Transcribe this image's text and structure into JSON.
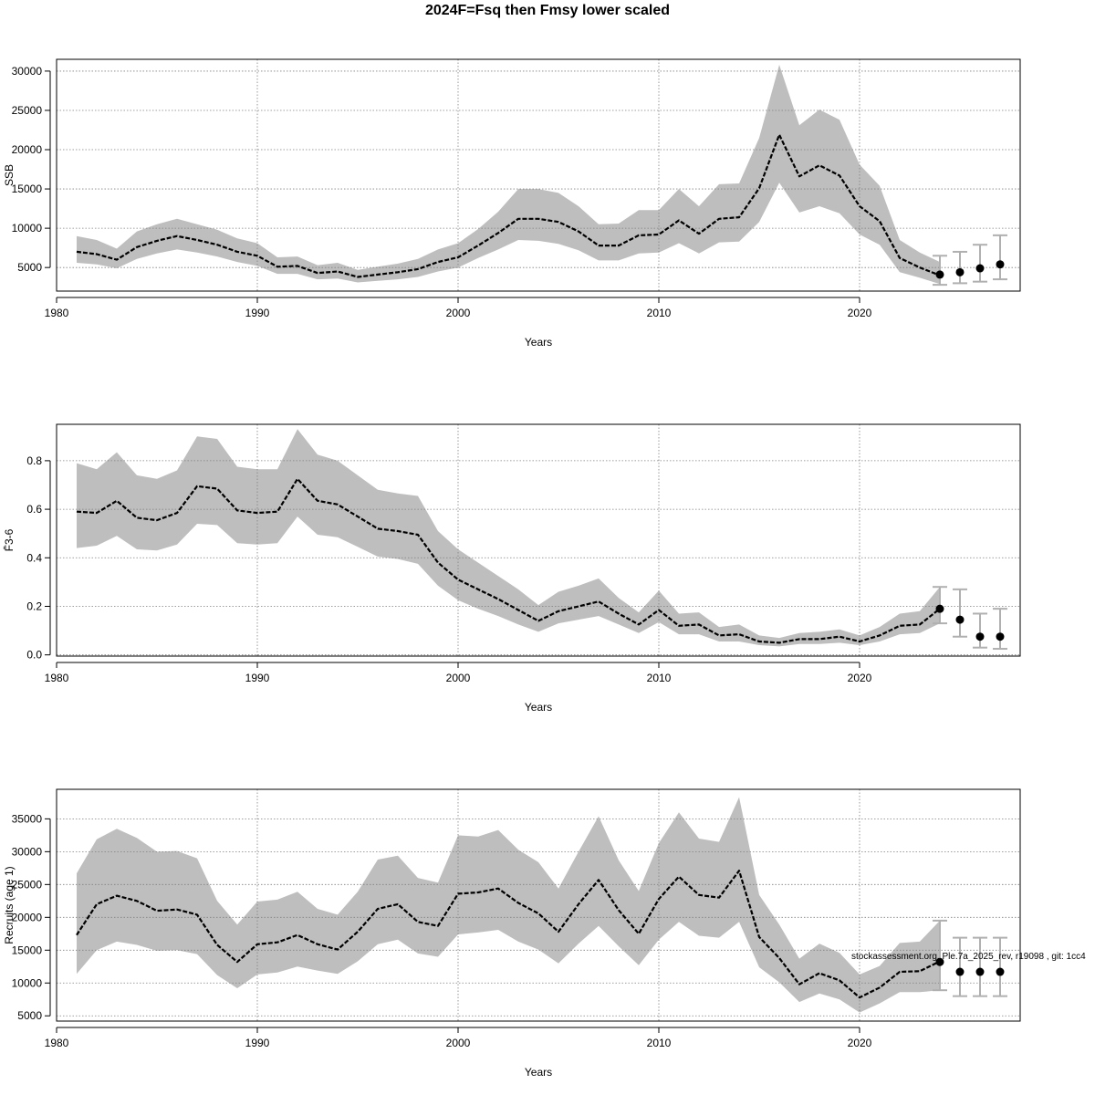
{
  "title": "2024F=Fsq then Fmsy lower scaled",
  "watermark": "stockassessment.org, Ple.7a_2025_rev, r19098 , git: 1cc4",
  "colors": {
    "ci_band": "#bebebe",
    "line": "#000000",
    "errorbar": "#b0b0b0",
    "grid": "#808080",
    "point": "#000000"
  },
  "chart_data": [
    {
      "type": "line",
      "xlabel": "Years",
      "ylabel": "SSB",
      "xlim": [
        1980,
        2028
      ],
      "ylim": [
        2000,
        31500
      ],
      "xticks": [
        1980,
        1990,
        2000,
        2010,
        2020
      ],
      "yticks": [
        5000,
        10000,
        15000,
        20000,
        25000,
        30000
      ],
      "grid": true,
      "x": [
        1981,
        1982,
        1983,
        1984,
        1985,
        1986,
        1987,
        1988,
        1989,
        1990,
        1991,
        1992,
        1993,
        1994,
        1995,
        1996,
        1997,
        1998,
        1999,
        2000,
        2001,
        2002,
        2003,
        2004,
        2005,
        2006,
        2007,
        2008,
        2009,
        2010,
        2011,
        2012,
        2013,
        2014,
        2015,
        2016,
        2017,
        2018,
        2019,
        2020,
        2021,
        2022,
        2023,
        2024
      ],
      "estimate": [
        7000,
        6700,
        6000,
        7600,
        8400,
        9000,
        8500,
        7900,
        7000,
        6500,
        5100,
        5200,
        4300,
        4500,
        3800,
        4100,
        4400,
        4800,
        5700,
        6300,
        7800,
        9400,
        11200,
        11200,
        10800,
        9600,
        7800,
        7800,
        9100,
        9200,
        11000,
        9300,
        11200,
        11400,
        15100,
        21900,
        16600,
        18000,
        16700,
        12800,
        10900,
        6200,
        5000,
        4000
      ],
      "lower": [
        5600,
        5400,
        4900,
        6100,
        6800,
        7300,
        6900,
        6400,
        5700,
        5200,
        4200,
        4200,
        3500,
        3600,
        3100,
        3300,
        3500,
        3800,
        4500,
        5000,
        6200,
        7300,
        8500,
        8400,
        8000,
        7200,
        5900,
        5900,
        6800,
        6900,
        8100,
        6800,
        8200,
        8300,
        10800,
        15800,
        12000,
        12800,
        11900,
        9200,
        7900,
        4400,
        3700,
        2900
      ],
      "upper": [
        9000,
        8500,
        7400,
        9600,
        10500,
        11200,
        10500,
        9800,
        8700,
        8100,
        6300,
        6400,
        5300,
        5600,
        4700,
        5100,
        5500,
        6100,
        7300,
        8100,
        9900,
        12100,
        15000,
        15000,
        14500,
        12800,
        10500,
        10600,
        12300,
        12300,
        15000,
        12800,
        15600,
        15700,
        21500,
        30800,
        23100,
        25100,
        23800,
        18100,
        15400,
        8500,
        6900,
        5700
      ],
      "projection": {
        "x": [
          2024,
          2025,
          2026,
          2027
        ],
        "y": [
          4100,
          4400,
          4900,
          5400
        ],
        "lower": [
          2800,
          3000,
          3200,
          3500
        ],
        "upper": [
          6500,
          7000,
          7900,
          9100
        ]
      }
    },
    {
      "type": "line",
      "xlabel": "Years",
      "ylabel": "F̄3-6",
      "xlim": [
        1980,
        2028
      ],
      "ylim": [
        -0.005,
        0.95
      ],
      "xticks": [
        1980,
        1990,
        2000,
        2010,
        2020
      ],
      "yticks": [
        0.0,
        0.2,
        0.4,
        0.6,
        0.8
      ],
      "grid": true,
      "x": [
        1981,
        1982,
        1983,
        1984,
        1985,
        1986,
        1987,
        1988,
        1989,
        1990,
        1991,
        1992,
        1993,
        1994,
        1995,
        1996,
        1997,
        1998,
        1999,
        2000,
        2001,
        2002,
        2003,
        2004,
        2005,
        2006,
        2007,
        2008,
        2009,
        2010,
        2011,
        2012,
        2013,
        2014,
        2015,
        2016,
        2017,
        2018,
        2019,
        2020,
        2021,
        2022,
        2023,
        2024
      ],
      "estimate": [
        0.59,
        0.585,
        0.635,
        0.565,
        0.555,
        0.585,
        0.695,
        0.685,
        0.595,
        0.585,
        0.59,
        0.725,
        0.635,
        0.62,
        0.57,
        0.52,
        0.51,
        0.495,
        0.38,
        0.31,
        0.27,
        0.23,
        0.185,
        0.14,
        0.18,
        0.2,
        0.22,
        0.17,
        0.125,
        0.185,
        0.12,
        0.125,
        0.08,
        0.085,
        0.055,
        0.05,
        0.065,
        0.065,
        0.075,
        0.055,
        0.08,
        0.12,
        0.125,
        0.19
      ],
      "lower": [
        0.44,
        0.45,
        0.49,
        0.435,
        0.43,
        0.455,
        0.54,
        0.535,
        0.46,
        0.455,
        0.46,
        0.57,
        0.495,
        0.485,
        0.445,
        0.405,
        0.395,
        0.375,
        0.285,
        0.225,
        0.19,
        0.16,
        0.125,
        0.095,
        0.13,
        0.145,
        0.16,
        0.125,
        0.09,
        0.135,
        0.085,
        0.085,
        0.055,
        0.055,
        0.04,
        0.035,
        0.045,
        0.045,
        0.05,
        0.04,
        0.055,
        0.085,
        0.09,
        0.13
      ],
      "upper": [
        0.79,
        0.765,
        0.835,
        0.74,
        0.725,
        0.76,
        0.9,
        0.89,
        0.775,
        0.765,
        0.765,
        0.93,
        0.825,
        0.8,
        0.74,
        0.68,
        0.665,
        0.655,
        0.51,
        0.435,
        0.38,
        0.325,
        0.27,
        0.205,
        0.26,
        0.285,
        0.315,
        0.235,
        0.175,
        0.265,
        0.17,
        0.175,
        0.115,
        0.125,
        0.08,
        0.07,
        0.09,
        0.095,
        0.105,
        0.08,
        0.115,
        0.17,
        0.18,
        0.28
      ],
      "projection": {
        "x": [
          2024,
          2025,
          2026,
          2027
        ],
        "y": [
          0.19,
          0.145,
          0.075,
          0.075
        ],
        "lower": [
          0.13,
          0.075,
          0.03,
          0.025
        ],
        "upper": [
          0.28,
          0.27,
          0.17,
          0.19
        ]
      }
    },
    {
      "type": "line",
      "xlabel": "Years",
      "ylabel": "Recruits (age 1)",
      "xlim": [
        1980,
        2028
      ],
      "ylim": [
        4200,
        39500
      ],
      "xticks": [
        1980,
        1990,
        2000,
        2010,
        2020
      ],
      "yticks": [
        5000,
        10000,
        15000,
        20000,
        25000,
        30000,
        35000
      ],
      "grid": true,
      "x": [
        1981,
        1982,
        1983,
        1984,
        1985,
        1986,
        1987,
        1988,
        1989,
        1990,
        1991,
        1992,
        1993,
        1994,
        1995,
        1996,
        1997,
        1998,
        1999,
        2000,
        2001,
        2002,
        2003,
        2004,
        2005,
        2006,
        2007,
        2008,
        2009,
        2010,
        2011,
        2012,
        2013,
        2014,
        2015,
        2016,
        2017,
        2018,
        2019,
        2020,
        2021,
        2022,
        2023,
        2024
      ],
      "estimate": [
        17300,
        22000,
        23300,
        22500,
        21000,
        21200,
        20400,
        15800,
        13200,
        15900,
        16200,
        17300,
        15900,
        15100,
        17800,
        21300,
        22000,
        19300,
        18700,
        23600,
        23800,
        24400,
        22200,
        20600,
        17800,
        22000,
        25700,
        21100,
        17500,
        22800,
        26200,
        23400,
        23000,
        27100,
        17000,
        13800,
        9800,
        11500,
        10400,
        7800,
        9300,
        11700,
        11800,
        13300
      ],
      "lower": [
        11400,
        15000,
        16300,
        15800,
        14900,
        15000,
        14400,
        11200,
        9200,
        11300,
        11600,
        12500,
        11900,
        11400,
        13300,
        15900,
        16600,
        14500,
        14000,
        17400,
        17700,
        18100,
        16300,
        15100,
        13000,
        16000,
        18700,
        15600,
        12700,
        16600,
        19300,
        17200,
        16900,
        19300,
        12400,
        10100,
        7100,
        8400,
        7500,
        5500,
        6900,
        8600,
        8600,
        8900
      ],
      "upper": [
        26700,
        31900,
        33500,
        32100,
        30000,
        30100,
        29000,
        22500,
        18900,
        22400,
        22700,
        23900,
        21300,
        20400,
        23900,
        28800,
        29400,
        26000,
        25300,
        32500,
        32300,
        33300,
        30300,
        28400,
        24400,
        30000,
        35400,
        28700,
        24000,
        31300,
        36000,
        32000,
        31500,
        38300,
        23400,
        18900,
        13700,
        16000,
        14600,
        11300,
        12600,
        16100,
        16300,
        19500
      ],
      "projection": {
        "x": [
          2024,
          2025,
          2026,
          2027
        ],
        "y": [
          13200,
          11700,
          11700,
          11700
        ],
        "lower": [
          8900,
          8000,
          8000,
          8000
        ],
        "upper": [
          19500,
          16900,
          16900,
          16900
        ]
      }
    }
  ]
}
